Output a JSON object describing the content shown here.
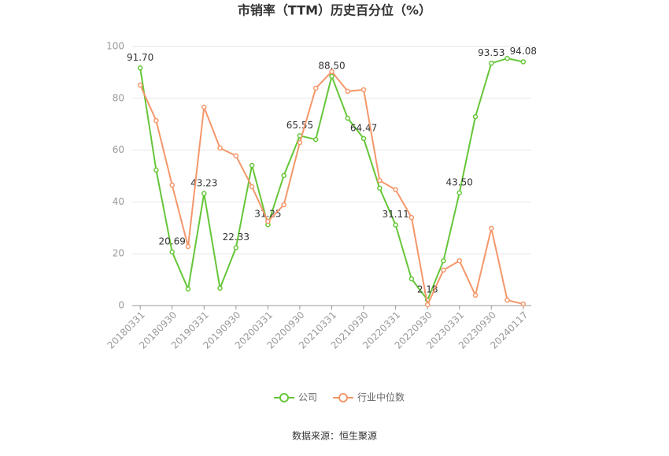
{
  "chart_data": {
    "type": "line",
    "title": "市销率（TTM）历史百分位（%）",
    "categories": [
      "20180331",
      null,
      "20180930",
      null,
      "20190331",
      null,
      "20190930",
      null,
      "20200331",
      null,
      "20200930",
      null,
      "20210331",
      null,
      "20210930",
      null,
      "20220331",
      null,
      "20220930",
      null,
      "20230331",
      null,
      "20230930",
      null,
      "20240117"
    ],
    "series": [
      {
        "name": "公司",
        "color": "#66c639",
        "values": [
          91.7,
          52.3,
          20.69,
          6.4,
          43.23,
          6.7,
          22.33,
          54.1,
          31.25,
          50.2,
          65.55,
          64.1,
          88.5,
          72.3,
          64.47,
          45.3,
          31.11,
          10.3,
          2.18,
          17.3,
          43.5,
          72.9,
          93.53,
          95.4,
          94.08
        ],
        "value_labels": [
          "91.70",
          null,
          "20.69",
          null,
          "43.23",
          null,
          "22.33",
          null,
          "31.25",
          null,
          "65.55",
          null,
          "88.50",
          null,
          "64.47",
          null,
          "31.11",
          null,
          "2.18",
          null,
          "43.50",
          null,
          "93.53",
          null,
          "94.08"
        ]
      },
      {
        "name": "行业中位数",
        "color": "#f4976b",
        "values": [
          85.1,
          71.4,
          46.5,
          22.8,
          76.6,
          60.8,
          57.8,
          45.9,
          32.5,
          38.9,
          62.9,
          83.9,
          90.3,
          82.7,
          83.3,
          48.3,
          44.7,
          34.0,
          0.3,
          13.7,
          17.3,
          4.0,
          29.8,
          2.1,
          0.6
        ]
      }
    ],
    "ylim": [
      0,
      100
    ],
    "yticks": [
      0,
      20,
      40,
      60,
      80,
      100
    ],
    "grid": true,
    "source": "数据来源：恒生聚源"
  }
}
